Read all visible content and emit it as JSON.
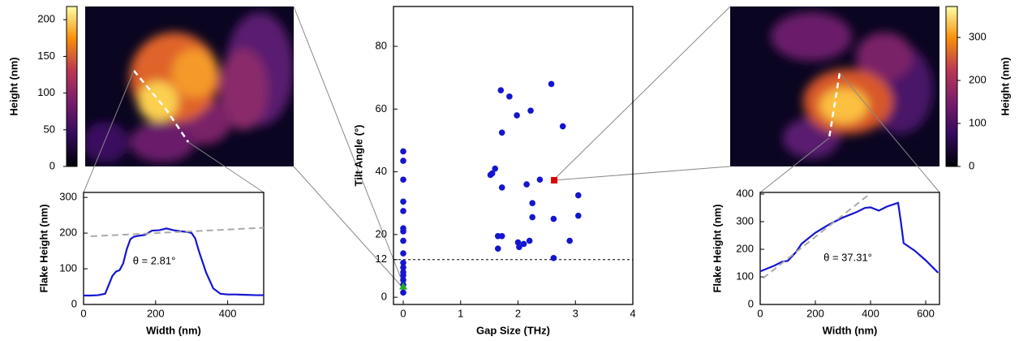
{
  "chart_data": [
    {
      "type": "colorbar",
      "label": "Height (nm)",
      "colormap": "inferno",
      "ylim": [
        0,
        218
      ],
      "yticks": [
        0,
        50,
        100,
        150,
        200
      ]
    },
    {
      "type": "line",
      "xlabel": "Width (nm)",
      "ylabel": "Flake Height (nm)",
      "annotation": "θ = 2.81°",
      "xlim": [
        0,
        500
      ],
      "xticks": [
        0,
        200,
        400
      ],
      "ylim": [
        0,
        314
      ],
      "yticks": [
        0,
        100,
        200,
        300
      ],
      "series": [
        {
          "color": "#1515d0",
          "style": "solid",
          "x": [
            0,
            20,
            40,
            60,
            70,
            80,
            90,
            100,
            110,
            120,
            130,
            140,
            150,
            170,
            190,
            210,
            230,
            250,
            270,
            290,
            300,
            310,
            320,
            340,
            360,
            380,
            400,
            420,
            450,
            480,
            500
          ],
          "values": [
            25,
            25,
            26,
            30,
            55,
            80,
            92,
            96,
            115,
            155,
            183,
            190,
            192,
            195,
            207,
            208,
            213,
            208,
            205,
            203,
            200,
            185,
            150,
            90,
            45,
            30,
            28,
            28,
            27,
            26,
            26
          ]
        },
        {
          "color": "#aaaaaa",
          "style": "dashed",
          "x": [
            20,
            500
          ],
          "values": [
            191,
            215
          ]
        }
      ]
    },
    {
      "type": "scatter",
      "xlabel": "Gap Size (THz)",
      "ylabel": "Tilt Angle (°)",
      "xlim": [
        -0.17,
        4
      ],
      "xticks": [
        0,
        1,
        2,
        3,
        4
      ],
      "ylim": [
        -2.3,
        92.7
      ],
      "yticks": [
        0,
        12,
        20,
        40,
        60,
        80
      ],
      "hline": 12,
      "series": [
        {
          "color": "#1515d0",
          "marker": "circle",
          "x": [
            0,
            0,
            0,
            0,
            0,
            0,
            0,
            0,
            0,
            0,
            0,
            0,
            0,
            0,
            0,
            0,
            1.55,
            1.52,
            1.6,
            1.7,
            1.85,
            1.98,
            1.72,
            1.72,
            1.65,
            1.72,
            1.65,
            2.0,
            2.02,
            2.1,
            2.2,
            2.15,
            2.22,
            2.25,
            2.25,
            2.38,
            2.58,
            2.62,
            2.62,
            2.78,
            2.9,
            3.05,
            3.05
          ],
          "values": [
            46.5,
            43.5,
            37.5,
            30.5,
            27.5,
            22,
            21,
            18,
            14,
            11,
            9.5,
            8,
            7,
            5.5,
            4,
            1.5,
            39.5,
            39,
            41,
            66,
            64,
            58,
            52.5,
            35,
            19.5,
            19.5,
            15.5,
            17.5,
            16,
            17,
            18,
            36,
            59.5,
            30,
            25.5,
            37.5,
            68,
            25,
            12.5,
            54.5,
            18,
            32.5,
            26
          ]
        },
        {
          "color": "#dd0000",
          "marker": "square",
          "x": [
            2.63
          ],
          "values": [
            37.31
          ]
        },
        {
          "color": "#22aa22",
          "marker": "triangle",
          "x": [
            0
          ],
          "values": [
            3.5
          ]
        }
      ]
    },
    {
      "type": "line",
      "xlabel": "Width (nm)",
      "ylabel": "Flake Height (nm)",
      "annotation": "θ = 37.31°",
      "xlim": [
        0,
        650
      ],
      "xticks": [
        0,
        200,
        400,
        600
      ],
      "ylim": [
        0,
        406
      ],
      "yticks": [
        0,
        100,
        200,
        300,
        400
      ],
      "series": [
        {
          "color": "#1515d0",
          "style": "solid",
          "x": [
            0,
            50,
            80,
            100,
            130,
            150,
            200,
            250,
            300,
            350,
            380,
            400,
            430,
            460,
            490,
            500,
            510,
            520,
            560,
            600,
            630,
            645
          ],
          "values": [
            120,
            140,
            155,
            158,
            190,
            220,
            260,
            290,
            315,
            335,
            350,
            352,
            340,
            355,
            365,
            368,
            300,
            222,
            195,
            160,
            130,
            115
          ]
        },
        {
          "color": "#aaaaaa",
          "style": "dashed",
          "x": [
            10,
            390
          ],
          "values": [
            95,
            395
          ]
        }
      ]
    },
    {
      "type": "colorbar",
      "label": "Height (nm)",
      "colormap": "inferno",
      "ylim": [
        0,
        372
      ],
      "yticks": [
        0,
        100,
        200,
        300
      ]
    }
  ]
}
